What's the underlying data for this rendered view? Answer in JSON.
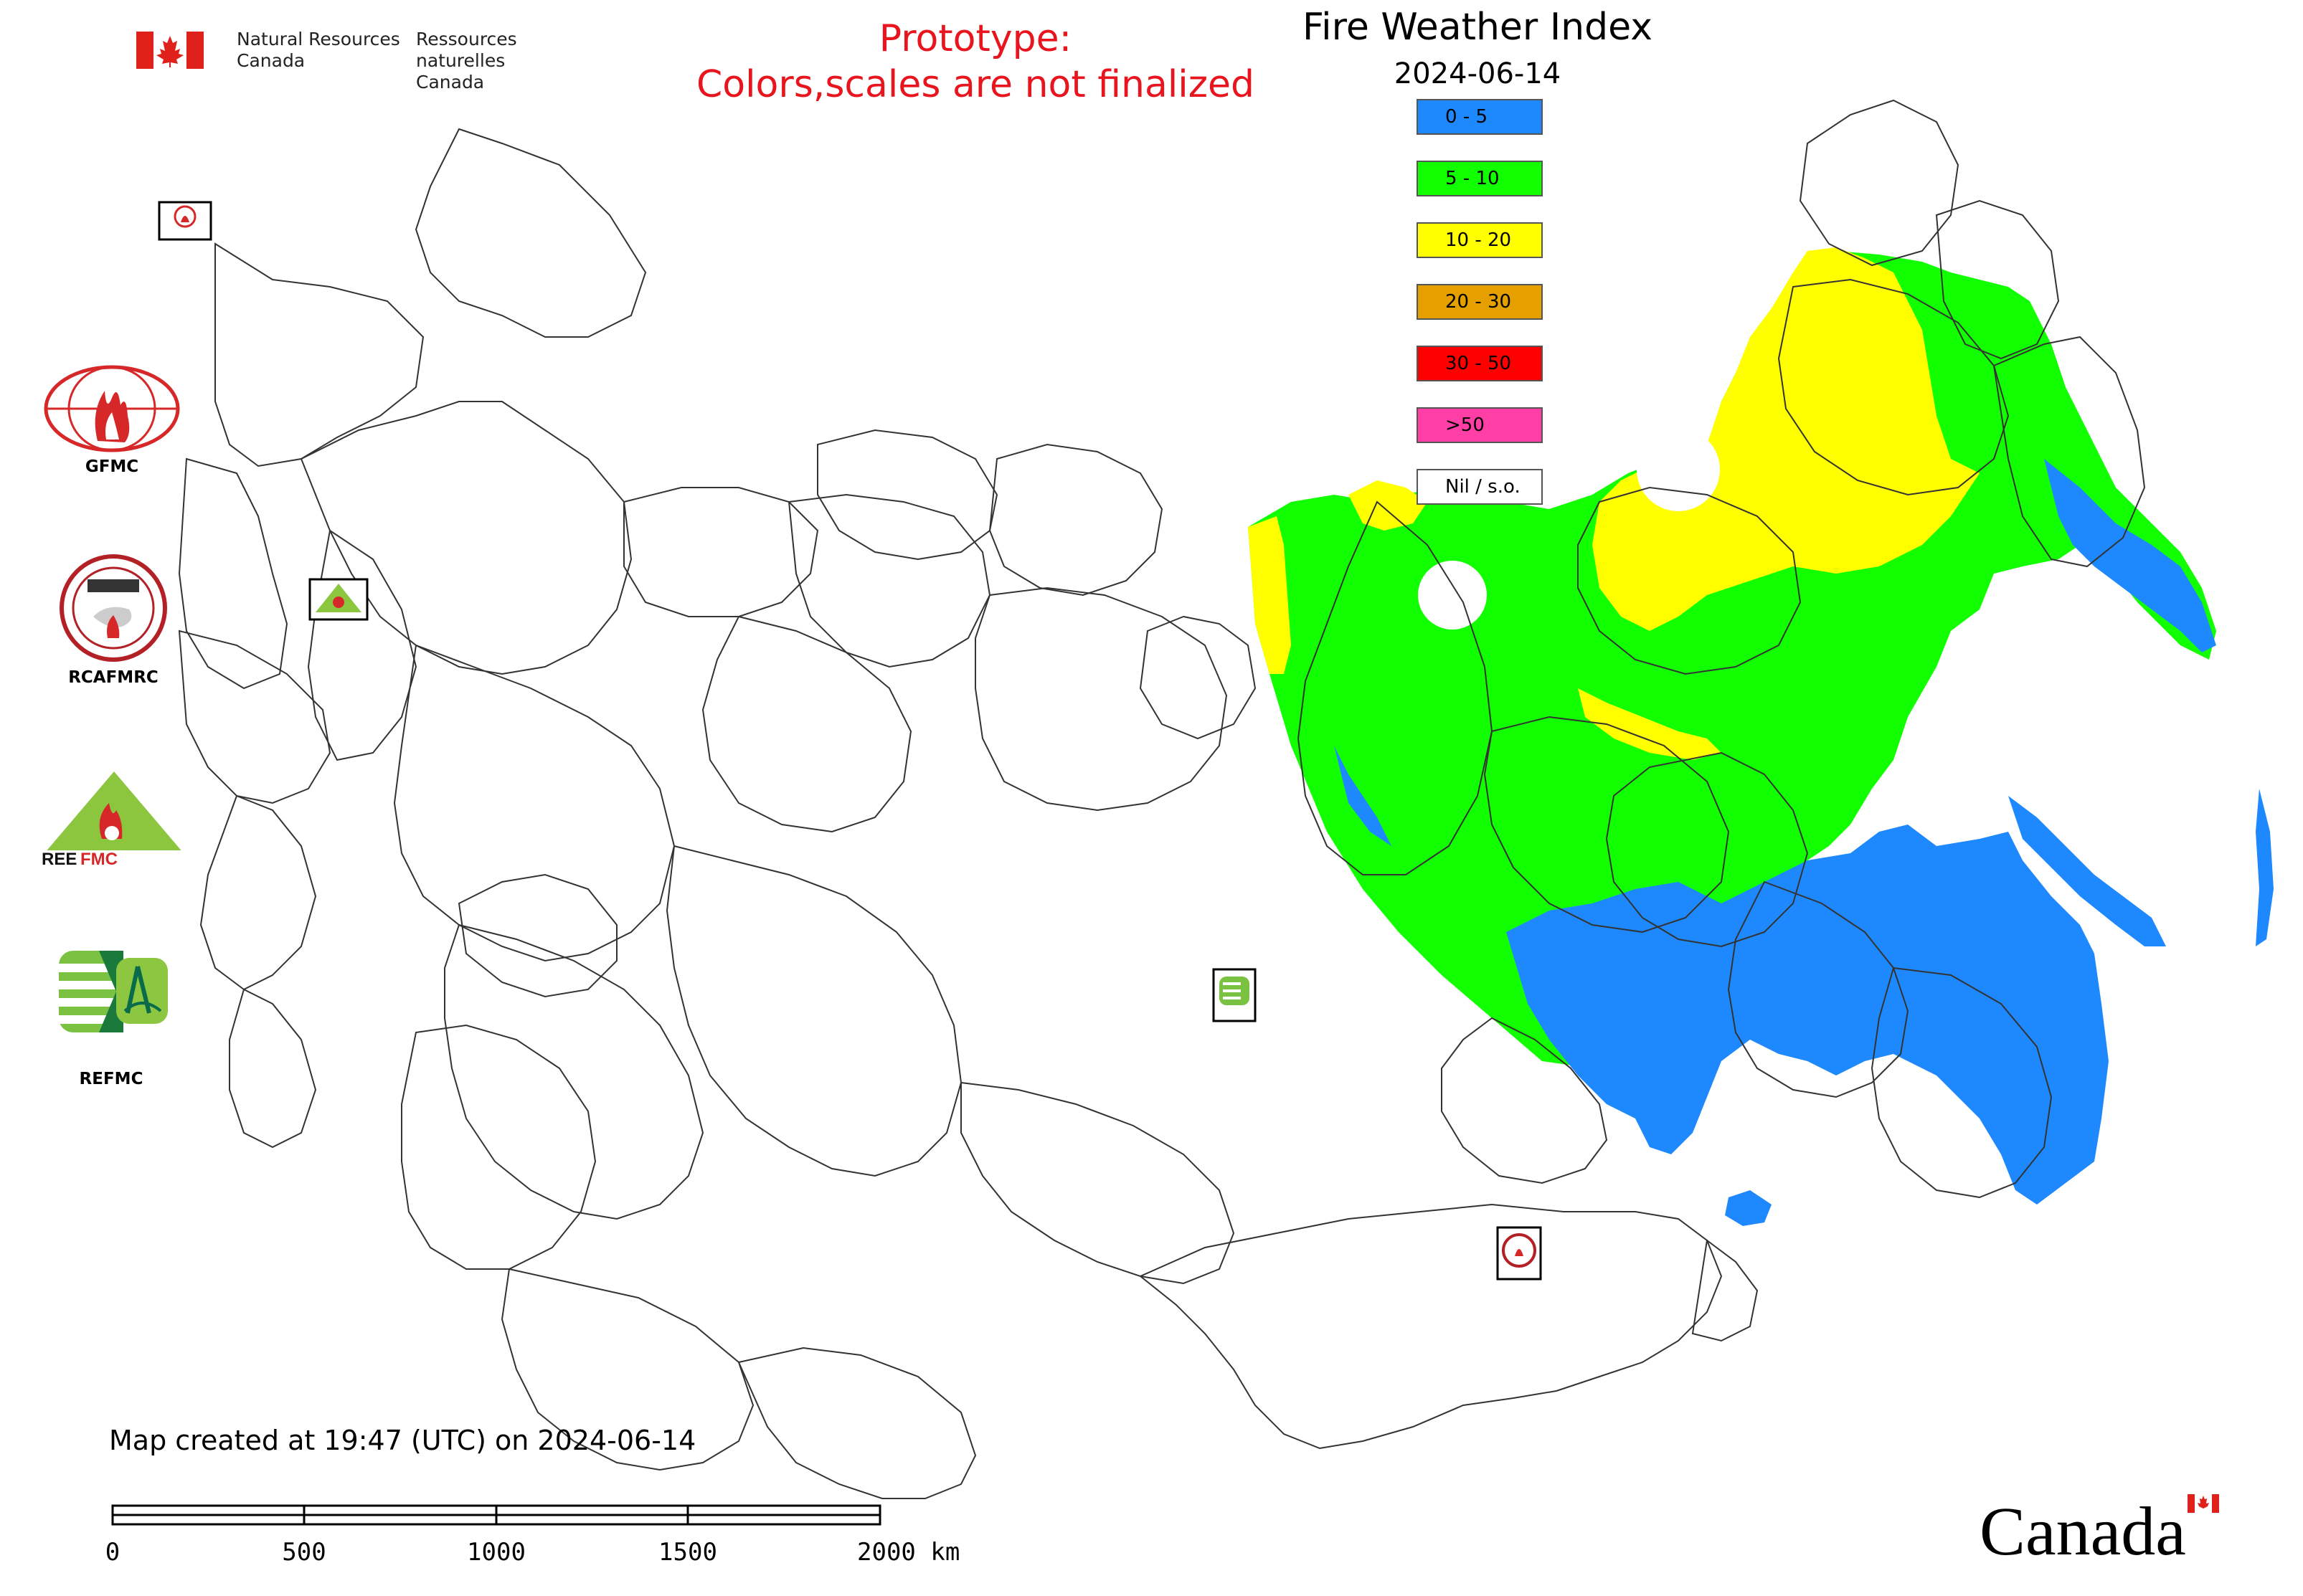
{
  "header": {
    "department_en_line1": "Natural Resources",
    "department_en_line2": "Canada",
    "department_fr_line1": "Ressources naturelles",
    "department_fr_line2": "Canada"
  },
  "notice": {
    "line1": "Prototype:",
    "line2": "Colors,scales are not finalized"
  },
  "map": {
    "title": "Fire Weather Index",
    "date": "2024-06-14"
  },
  "legend": {
    "items": [
      {
        "label": "0 - 5",
        "color": "#1e88ff"
      },
      {
        "label": "5 - 10",
        "color": "#11ff00"
      },
      {
        "label": "10 - 20",
        "color": "#ffff00"
      },
      {
        "label": "20 - 30",
        "color": "#e5a000"
      },
      {
        "label": "30 - 50",
        "color": "#ff0000"
      },
      {
        "label": ">50",
        "color": "#ff3fa6"
      },
      {
        "label": "Nil / s.o.",
        "color": "#ffffff"
      }
    ]
  },
  "logos": {
    "gfmc": "GFMC",
    "rcafmrc": "RCAFMRC",
    "reefmc_text": "REEFMC",
    "refmc": "REFMC"
  },
  "footer": {
    "created": "Map created at 19:47 (UTC) on 2024-06-14",
    "scale_labels": [
      "0",
      "500",
      "1000",
      "1500",
      "2000 km"
    ],
    "canada_wordmark": "Canada"
  }
}
